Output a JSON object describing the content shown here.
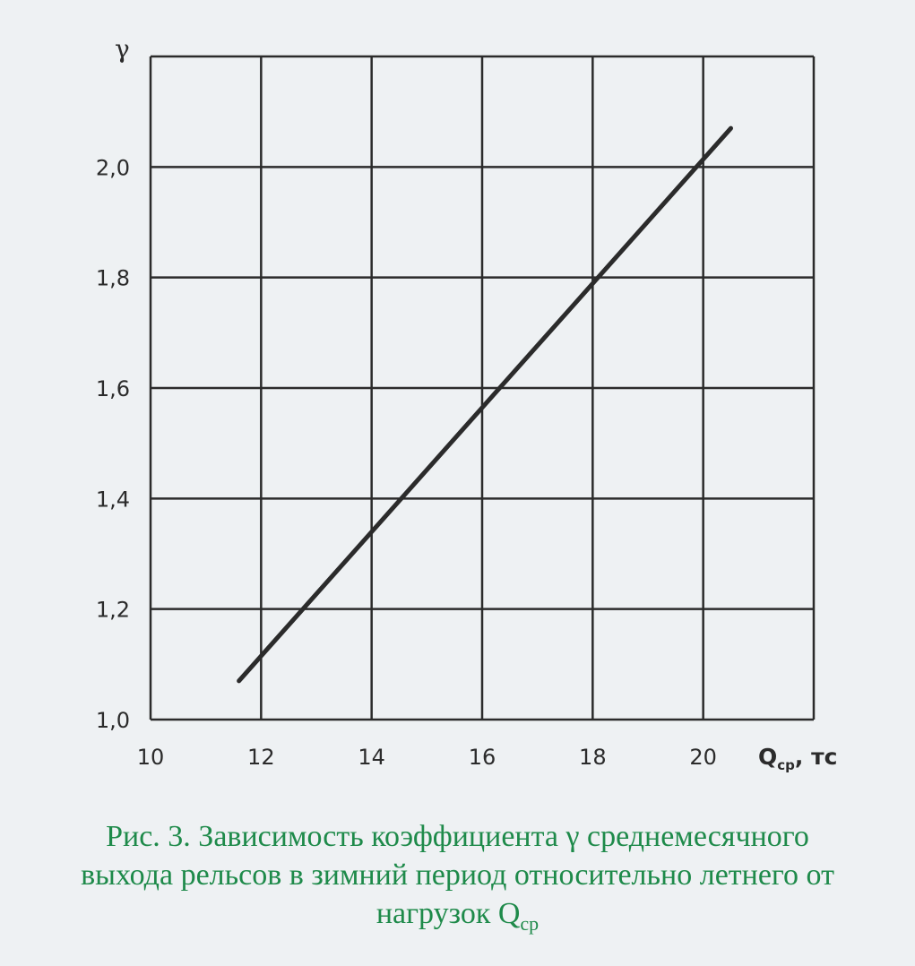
{
  "chart_data": {
    "type": "line",
    "title": "",
    "xlabel_main": "Q",
    "xlabel_sub": "ср",
    "xlabel_unit": ", тс",
    "ylabel": "γ",
    "xlim": [
      10,
      22
    ],
    "ylim": [
      1.0,
      2.2
    ],
    "x_ticks": [
      "10",
      "12",
      "14",
      "16",
      "18",
      "20"
    ],
    "x_tick_values": [
      10,
      12,
      14,
      16,
      18,
      20
    ],
    "y_ticks": [
      "1,0",
      "1,2",
      "1,4",
      "1,6",
      "1,8",
      "2,0"
    ],
    "y_tick_values": [
      1.0,
      1.2,
      1.4,
      1.6,
      1.8,
      2.0
    ],
    "grid": true,
    "series": [
      {
        "x": [
          11.6,
          20.5
        ],
        "y": [
          1.07,
          2.07
        ],
        "color": "#2b2b2b"
      }
    ]
  },
  "caption": {
    "line1": "Рис. 3. Зависимость коэффициента γ среднемесячного",
    "line2": "выхода рельсов в зимний период относительно летнего от",
    "line3_text": "нагрузок Q",
    "line3_sub": "ср",
    "color": "#1e8a4a"
  }
}
